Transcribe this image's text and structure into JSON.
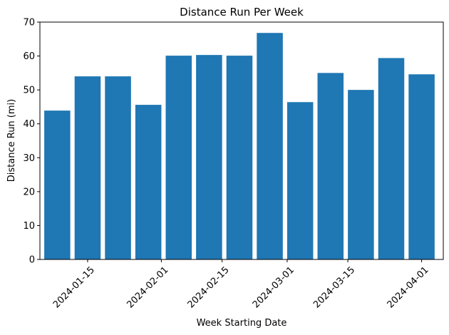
{
  "chart_data": {
    "type": "bar",
    "title": "Distance Run Per Week",
    "xlabel": "Week Starting Date",
    "ylabel": "Distance Run (mi)",
    "x": [
      "2024-01-08",
      "2024-01-15",
      "2024-01-22",
      "2024-01-29",
      "2024-02-05",
      "2024-02-12",
      "2024-02-19",
      "2024-02-26",
      "2024-03-04",
      "2024-03-11",
      "2024-03-18",
      "2024-03-25",
      "2024-04-01"
    ],
    "values": [
      43.9,
      54.0,
      54.0,
      45.6,
      60.1,
      60.3,
      60.1,
      66.8,
      46.4,
      55.0,
      50.0,
      59.4,
      54.6
    ],
    "ylim": [
      0,
      70
    ],
    "yticks": [
      0,
      10,
      20,
      30,
      40,
      50,
      60,
      70
    ],
    "xlim": [
      "2024-01-04",
      "2024-04-06"
    ],
    "xticks": [
      "2024-01-15",
      "2024-02-01",
      "2024-02-15",
      "2024-03-01",
      "2024-03-15",
      "2024-04-01"
    ],
    "bar_width_days": 6,
    "grid": false,
    "legend": "none",
    "bar_color": "#1f77b4"
  }
}
